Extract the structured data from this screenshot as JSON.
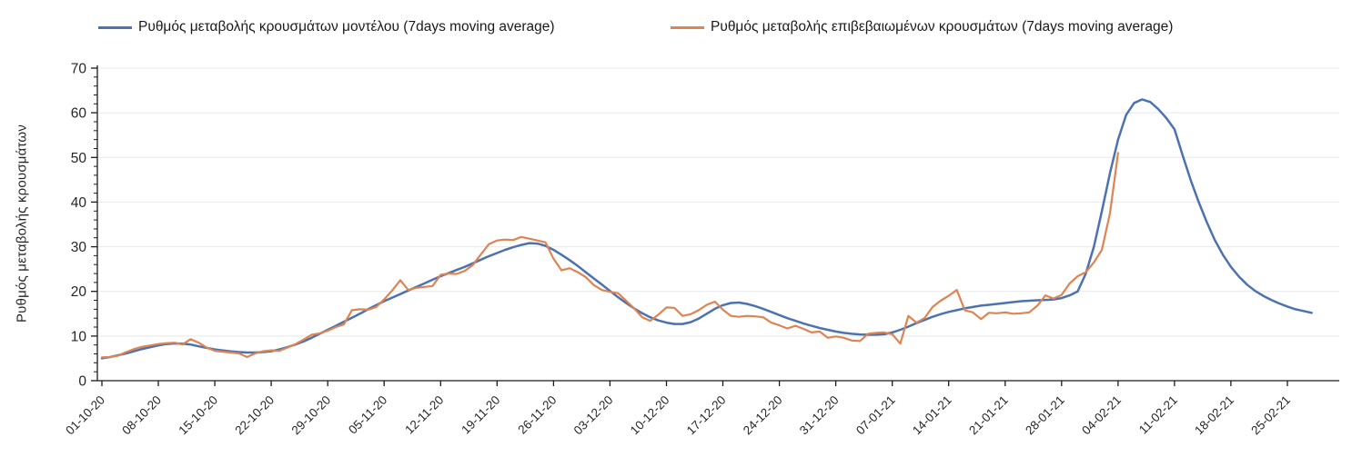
{
  "chart_data": {
    "type": "line",
    "title": "",
    "xlabel": "",
    "ylabel": "Ρυθμός μεταβολής κρουσμάτων",
    "ylim": [
      0,
      70
    ],
    "yticks": [
      0,
      10,
      20,
      30,
      40,
      50,
      60,
      70
    ],
    "y_minor_tick_step": 2,
    "grid": "horizontal-only",
    "legend_position": "top",
    "x_unit": "days since 01-10-20, weekly ticks",
    "x_tick_labels": [
      "01-10-20",
      "08-10-20",
      "15-10-20",
      "22-10-20",
      "29-10-20",
      "05-11-20",
      "12-11-20",
      "19-11-20",
      "26-11-20",
      "03-12-20",
      "10-12-20",
      "17-12-20",
      "24-12-20",
      "31-12-20",
      "07-01-21",
      "14-01-21",
      "21-01-21",
      "28-01-21",
      "04-02-21",
      "11-02-21",
      "18-02-21",
      "25-02-21"
    ],
    "x_tick_interval_days": 7,
    "series": [
      {
        "name": "Ρυθμός μεταβολής κρουσμάτων μοντέλου (7days moving average)",
        "color": "#4c72b0",
        "start_day": 0,
        "values": [
          5.0,
          5.3,
          5.7,
          6.1,
          6.6,
          7.1,
          7.5,
          7.9,
          8.2,
          8.35,
          8.3,
          8.1,
          7.7,
          7.35,
          7.0,
          6.75,
          6.55,
          6.4,
          6.3,
          6.3,
          6.4,
          6.6,
          7.0,
          7.5,
          8.1,
          8.8,
          9.6,
          10.5,
          11.4,
          12.3,
          13.2,
          14.1,
          15.0,
          16.0,
          16.9,
          17.8,
          18.6,
          19.4,
          20.2,
          21.0,
          21.8,
          22.6,
          23.4,
          24.1,
          24.8,
          25.5,
          26.3,
          27.1,
          27.9,
          28.6,
          29.3,
          29.9,
          30.4,
          30.8,
          30.7,
          30.2,
          29.3,
          28.2,
          27.0,
          25.7,
          24.3,
          22.9,
          21.5,
          20.1,
          18.7,
          17.4,
          16.2,
          15.1,
          14.2,
          13.5,
          13.0,
          12.7,
          12.7,
          13.1,
          13.9,
          15.0,
          16.1,
          16.9,
          17.4,
          17.5,
          17.2,
          16.7,
          16.1,
          15.4,
          14.7,
          14.0,
          13.4,
          12.8,
          12.3,
          11.8,
          11.4,
          11.0,
          10.7,
          10.5,
          10.35,
          10.3,
          10.3,
          10.4,
          10.8,
          11.4,
          12.1,
          12.9,
          13.6,
          14.3,
          14.9,
          15.4,
          15.8,
          16.2,
          16.5,
          16.8,
          17.0,
          17.2,
          17.4,
          17.6,
          17.8,
          17.9,
          18.0,
          18.1,
          18.2,
          18.5,
          19.1,
          20.0,
          24.0,
          30.0,
          38.0,
          46.5,
          54.0,
          59.5,
          62.2,
          63.0,
          62.4,
          60.8,
          58.8,
          56.3,
          50.5,
          45.0,
          40.0,
          35.5,
          31.5,
          28.2,
          25.5,
          23.3,
          21.5,
          20.1,
          19.0,
          18.1,
          17.3,
          16.6,
          16.0,
          15.6,
          15.2
        ]
      },
      {
        "name": "Ρυθμός μεταβολής επιβεβαιωμένων κρουσμάτων (7days moving average)",
        "color": "#dd8452",
        "start_day": 0,
        "values": [
          5.2,
          5.3,
          5.6,
          6.4,
          7.1,
          7.6,
          7.9,
          8.2,
          8.4,
          8.5,
          8.1,
          9.3,
          8.5,
          7.4,
          6.7,
          6.5,
          6.3,
          6.1,
          5.3,
          6.1,
          6.6,
          6.8,
          6.7,
          7.4,
          8.2,
          9.2,
          10.3,
          10.6,
          11.2,
          12.0,
          12.6,
          15.8,
          16.0,
          15.9,
          16.5,
          18.2,
          20.2,
          22.5,
          20.3,
          20.8,
          21.0,
          21.2,
          23.7,
          24.0,
          23.9,
          24.6,
          25.9,
          28.3,
          30.6,
          31.4,
          31.6,
          31.5,
          32.2,
          31.8,
          31.4,
          31.0,
          27.3,
          24.7,
          25.2,
          24.3,
          23.2,
          21.4,
          20.3,
          19.9,
          19.6,
          17.9,
          16.2,
          14.2,
          13.4,
          14.8,
          16.4,
          16.3,
          14.5,
          14.9,
          15.8,
          17.0,
          17.7,
          15.9,
          14.5,
          14.3,
          14.5,
          14.4,
          14.2,
          13.0,
          12.4,
          11.7,
          12.3,
          11.6,
          10.8,
          11.0,
          9.6,
          9.9,
          9.6,
          9.0,
          8.9,
          10.5,
          10.7,
          10.8,
          10.4,
          8.3,
          14.5,
          13.0,
          14.0,
          16.5,
          17.9,
          19.0,
          20.3,
          15.8,
          15.3,
          13.8,
          15.2,
          15.1,
          15.3,
          15.0,
          15.1,
          15.3,
          16.8,
          19.1,
          18.4,
          19.2,
          21.8,
          23.4,
          24.3,
          26.5,
          29.3,
          37.5,
          51.0
        ]
      }
    ]
  },
  "style": {
    "grid_color": "#e8e8e8",
    "axis_color": "#1a1a1a",
    "tick_label_color": "#262626",
    "background": "#ffffff"
  }
}
